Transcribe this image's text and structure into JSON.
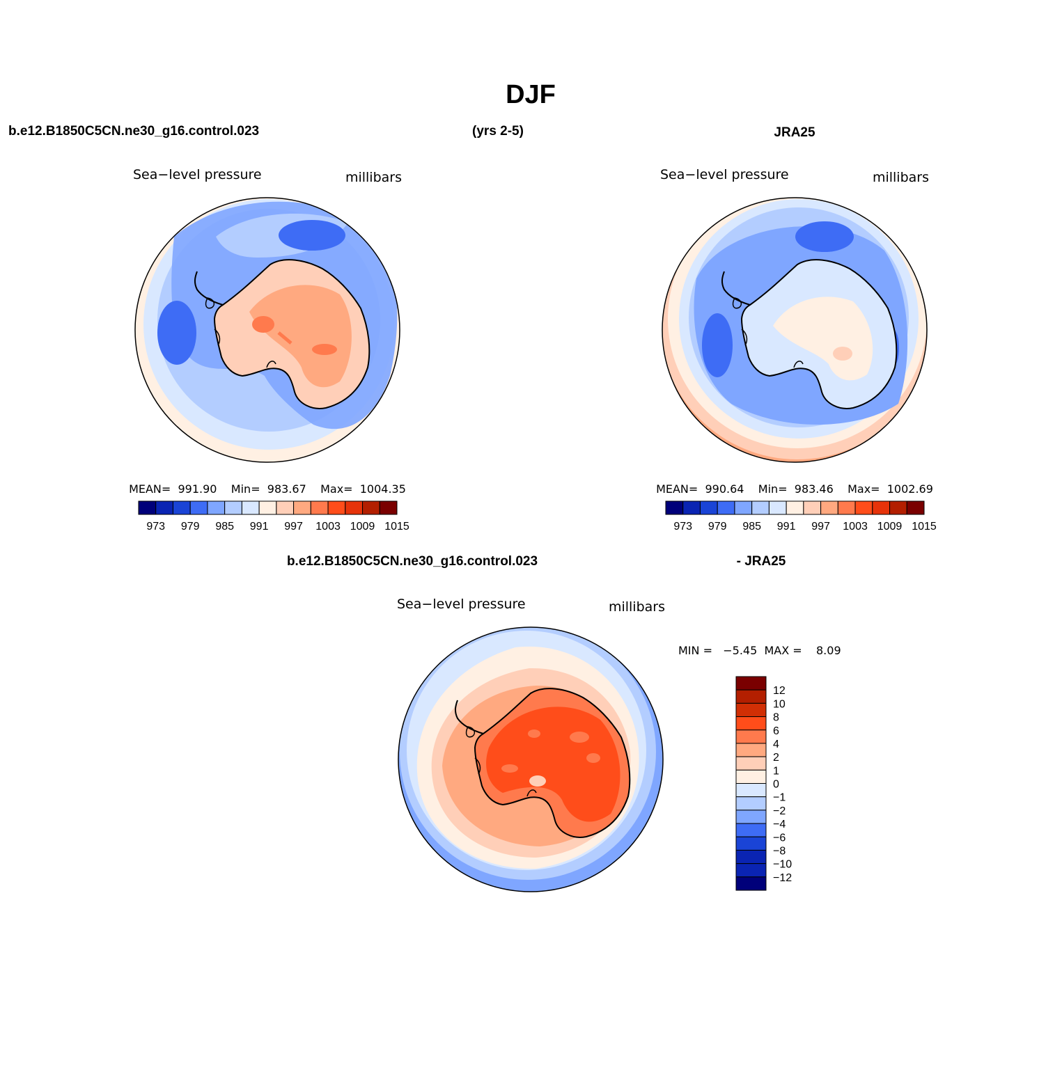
{
  "figure": {
    "title": "DJF",
    "case_label": "b.e12.B1850C5CN.ne30_g16.control.023",
    "years_label": "(yrs 2-5)",
    "ref_label": "JRA25",
    "diff_case_label": "b.e12.B1850C5CN.ne30_g16.control.023",
    "diff_ref_label": "- JRA25"
  },
  "panels": [
    {
      "id": "model",
      "variable": "Sea−level pressure",
      "units": "millibars",
      "stats": "MEAN=  991.90    Min=  983.67    Max=  1004.35"
    },
    {
      "id": "obs",
      "variable": "Sea−level pressure",
      "units": "millibars",
      "stats": "MEAN=  990.64    Min=  983.46    Max=  1002.69"
    },
    {
      "id": "diff",
      "variable": "Sea−level pressure",
      "units": "millibars",
      "stats": "MIN =   −5.45  MAX =    8.09"
    }
  ],
  "colors": {
    "abs_scale": [
      "#00007a",
      "#0a24b3",
      "#1a44d6",
      "#3e6cf5",
      "#7fa6ff",
      "#b3cdff",
      "#d9e8ff",
      "#fff0e3",
      "#ffcfb8",
      "#ffa980",
      "#ff7a4d",
      "#ff4d1a",
      "#e6330a",
      "#b31f00",
      "#7a0000"
    ],
    "diff_scale": [
      "#7a0000",
      "#b31f00",
      "#d12f05",
      "#ff4d1a",
      "#ff7a4d",
      "#ffa980",
      "#ffcfb8",
      "#fff0e3",
      "#d9e8ff",
      "#b3cdff",
      "#7fa6ff",
      "#3e6cf5",
      "#1a44d6",
      "#0a24b3",
      "#0a24b3",
      "#00007a"
    ]
  },
  "chart_data": [
    {
      "type": "colorbar",
      "orientation": "horizontal",
      "panel": "model",
      "tick_labels": [
        "973",
        "979",
        "985",
        "991",
        "997",
        "1003",
        "1009",
        "1015"
      ],
      "levels": [
        973,
        976,
        979,
        982,
        985,
        988,
        991,
        994,
        997,
        1000,
        1003,
        1006,
        1009,
        1012,
        1015
      ]
    },
    {
      "type": "colorbar",
      "orientation": "horizontal",
      "panel": "obs",
      "tick_labels": [
        "973",
        "979",
        "985",
        "991",
        "997",
        "1003",
        "1009",
        "1015"
      ],
      "levels": [
        973,
        976,
        979,
        982,
        985,
        988,
        991,
        994,
        997,
        1000,
        1003,
        1006,
        1009,
        1012,
        1015
      ]
    },
    {
      "type": "colorbar",
      "orientation": "vertical",
      "panel": "diff",
      "tick_labels": [
        "12",
        "10",
        "8",
        "6",
        "4",
        "2",
        "1",
        "0",
        "−1",
        "−2",
        "−4",
        "−6",
        "−8",
        "−10",
        "−12"
      ],
      "levels": [
        12,
        10,
        8,
        6,
        4,
        2,
        1,
        0,
        -1,
        -2,
        -4,
        -6,
        -8,
        -10,
        -12
      ]
    }
  ]
}
